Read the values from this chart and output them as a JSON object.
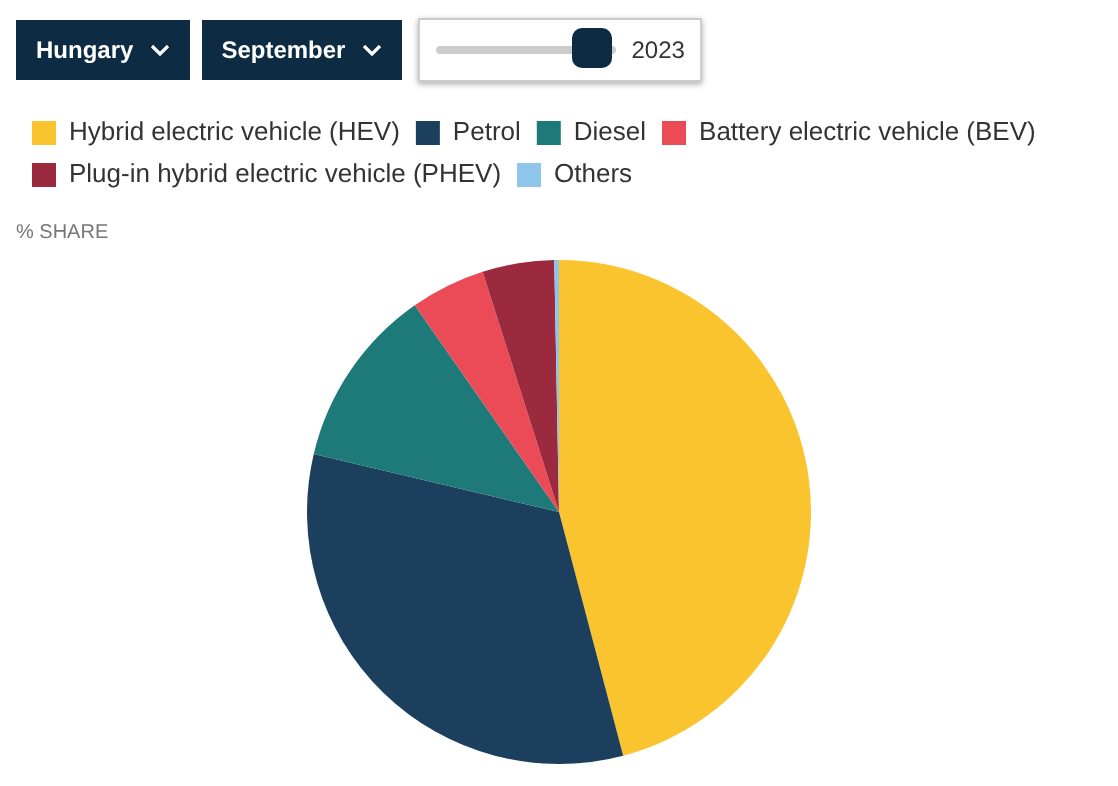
{
  "chart_data": {
    "type": "pie",
    "subtitle": "% SHARE",
    "annotations": [
      "Hungary",
      "September",
      "2023"
    ],
    "categories": [
      "Hybrid electric vehicle (HEV)",
      "Petrol",
      "Diesel",
      "Battery electric vehicle (BEV)",
      "Plug-in hybrid electric vehicle (PHEV)",
      "Others"
    ],
    "values": [
      45.9,
      32.8,
      11.6,
      4.8,
      4.6,
      0.3
    ],
    "colors": [
      "#fac42e",
      "#1c3f5e",
      "#1e7a78",
      "#eb4a57",
      "#9c2a3e",
      "#8ec5ea"
    ],
    "legend": "top left"
  }
}
